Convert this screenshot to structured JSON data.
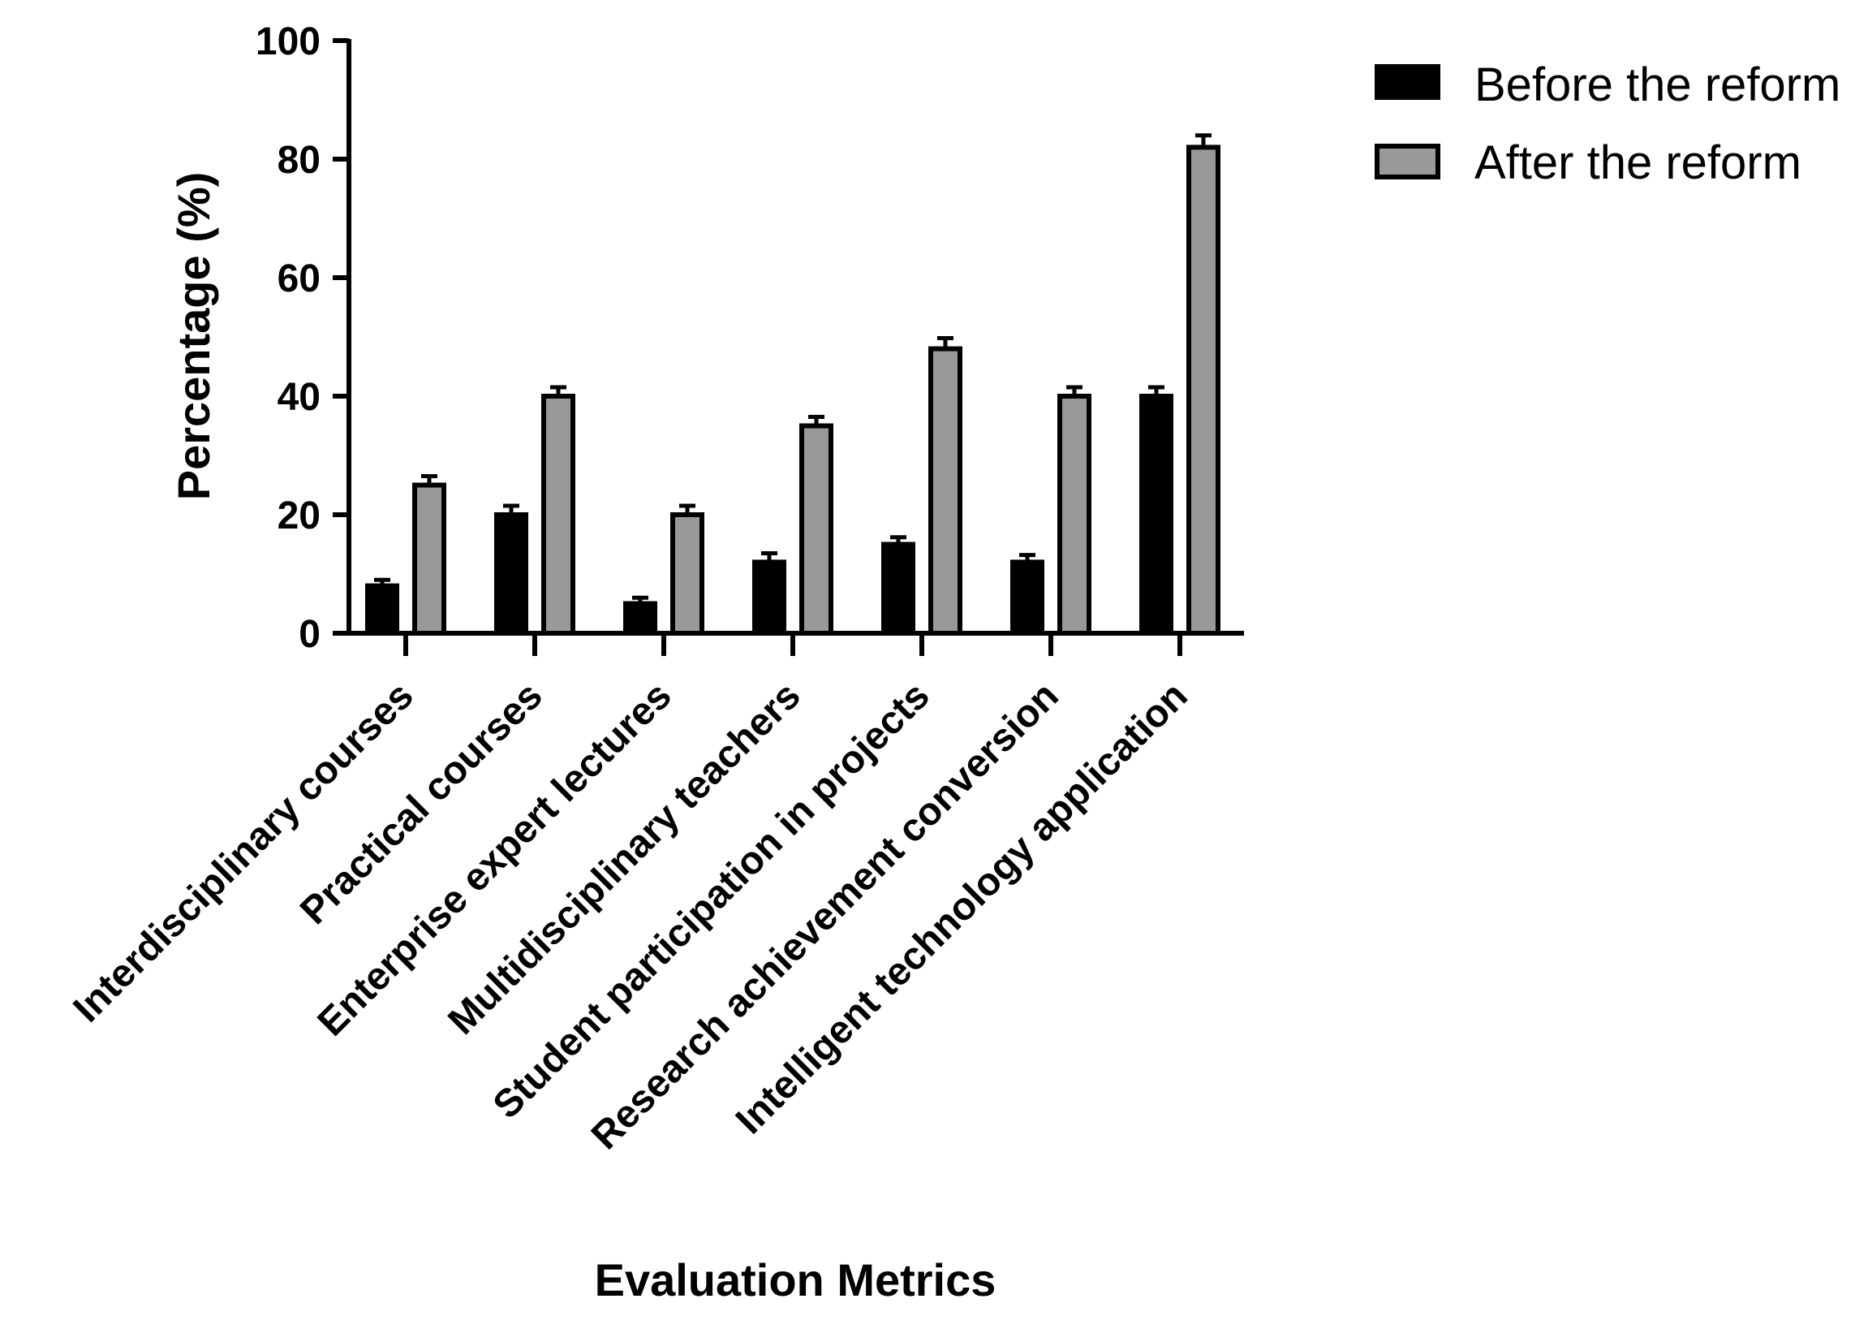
{
  "chart_data": {
    "type": "bar",
    "title": "",
    "xlabel": "Evaluation Metrics",
    "ylabel": "Percentage (%)",
    "ylim": [
      0,
      100
    ],
    "yticks": [
      "0",
      "20",
      "40",
      "60",
      "80",
      "100"
    ],
    "categories": [
      "Interdisciplinary courses",
      "Practical courses",
      "Enterprise expert lectures",
      "Multidisciplinary teachers",
      "Student participation in projects",
      "Research achievement conversion",
      "Intelligent technology application"
    ],
    "series": [
      {
        "name": "Before the reform",
        "color": "#000000",
        "values": [
          8,
          20,
          5,
          12,
          15,
          12,
          40
        ],
        "errors": [
          1,
          1.5,
          1,
          1.5,
          1.2,
          1.2,
          1.5
        ]
      },
      {
        "name": "After the reform",
        "color": "#999999",
        "values": [
          25,
          40,
          20,
          35,
          48,
          40,
          82
        ],
        "errors": [
          1.5,
          1.5,
          1.5,
          1.5,
          1.8,
          1.5,
          2
        ]
      }
    ],
    "legend_position": "top-right",
    "grid": false
  }
}
